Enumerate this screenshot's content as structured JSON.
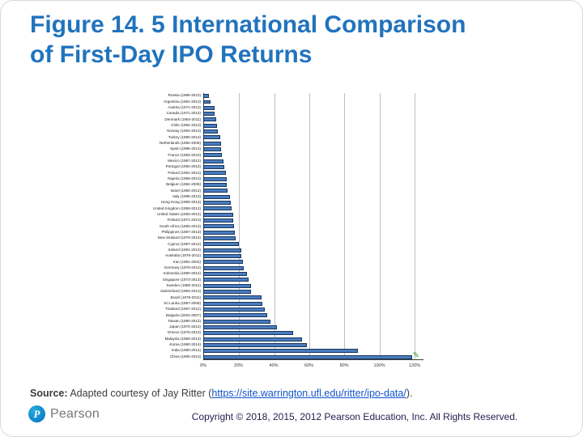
{
  "header": {
    "title_line1": "Figure 14. 5 International Comparison",
    "title_line2": "of First-Day IPO Returns"
  },
  "chart_data": {
    "type": "bar",
    "orientation": "horizontal",
    "title": "International Comparison of First-Day IPO Returns",
    "xlabel": "",
    "ylabel": "",
    "xlim": [
      0,
      125
    ],
    "grid": true,
    "ticks": [
      "0%",
      "20%",
      "40%",
      "60%",
      "80%",
      "100%",
      "120%"
    ],
    "categories": [
      "Russia (1999-2013)",
      "Argentina (1991-2013)",
      "Austria (1971-2013)",
      "Canada (1971-2013)",
      "Denmark (1984-2011)",
      "Chile (1982-2013)",
      "Norway (1984-2013)",
      "Turkey (1990-2013)",
      "Netherlands (1982-2006)",
      "Spain (1986-2013)",
      "France (1983-2010)",
      "Mexico (1987-2012)",
      "Portugal (1992-2013)",
      "Poland (1991-2014)",
      "Nigeria (1989-2013)",
      "Belgium (1984-2006)",
      "Israel (1990-2013)",
      "Italy (1985-2013)",
      "Hong Kong (1980-2013)",
      "United Kingdom (1959-2012)",
      "United States (1960-2014)",
      "Finland (1971-2013)",
      "South Africa (1980-2013)",
      "Philippines (1987-2013)",
      "New Zealand (1979-2013)",
      "Cyprus (1997-2012)",
      "Ireland (1991-2013)",
      "Australia (1976-2011)",
      "Iran (1991-2004)",
      "Germany (1978-2014)",
      "Indonesia (1990-2014)",
      "Singapore (1973-2013)",
      "Sweden (1980-2011)",
      "Switzerland (1983-2013)",
      "Brazil (1979-2011)",
      "Sri Lanka (1987-2008)",
      "Thailand (1987-2012)",
      "Bulgaria (2004-2007)",
      "Taiwan (1980-2013)",
      "Japan (1970-2013)",
      "Greece (1976-2013)",
      "Malaysia (1980-2013)",
      "Korea (1980-2014)",
      "India (1990-2014)",
      "China (1990-2013)"
    ],
    "values": [
      3.3,
      4.2,
      6.4,
      6.5,
      7.4,
      7.9,
      8.1,
      9.6,
      10.2,
      10.3,
      10.5,
      11.5,
      11.9,
      12.7,
      13.1,
      13.5,
      13.8,
      15.2,
      15.8,
      16.0,
      16.9,
      16.9,
      17.4,
      18.1,
      18.6,
      20.3,
      21.6,
      21.8,
      22.4,
      23.0,
      24.9,
      25.8,
      27.2,
      27.3,
      33.1,
      33.5,
      35.1,
      36.5,
      38.1,
      41.7,
      50.8,
      56.2,
      58.8,
      88.0,
      118.4
    ],
    "annotation": {
      "shape": "green-pencil-mark",
      "glyph": "✎",
      "target_index": 44,
      "color": "#44A044"
    },
    "legend": null
  },
  "footer": {
    "source_label": "Source:",
    "source_text": " Adapted courtesy of Jay Ritter (",
    "source_link": "https://site.warrington.ufl.edu/ritter/ipo-data/",
    "source_suffix": ").",
    "brand": "Pearson",
    "brand_mark": "P",
    "copyright": "Copyright © 2018, 2015, 2012 Pearson Education, Inc. All Rights Reserved."
  },
  "colors": {
    "title": "#2173BD",
    "bar_fill": "#4A7CBE",
    "bar_border": "#17365D",
    "gridline": "#BFBFBF",
    "link": "#1155CC",
    "annotation": "#44A044",
    "copyright_text": "#1E1E50"
  }
}
